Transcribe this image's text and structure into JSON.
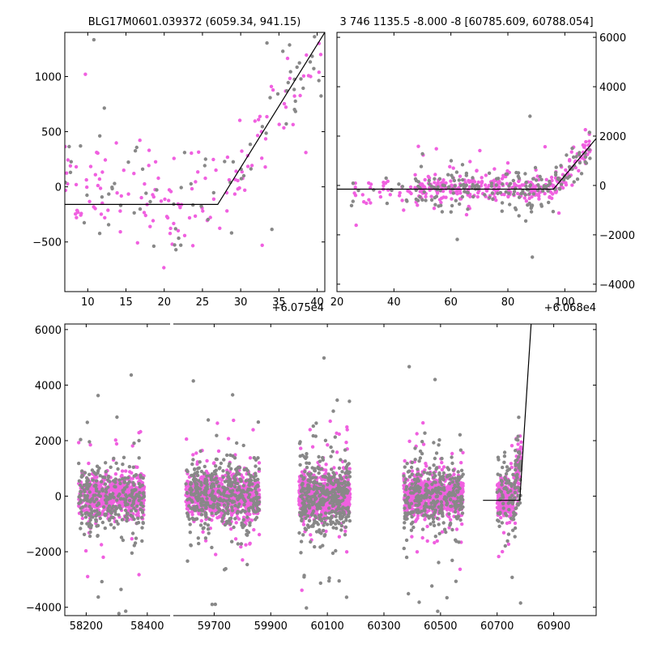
{
  "colors": {
    "magenta": "#f060e0",
    "gray": "#888888",
    "model_line": "#000000",
    "frame": "#000000",
    "background": "#ffffff"
  },
  "chart_data": [
    {
      "id": "zoom_left",
      "type": "scatter",
      "title": "BLG17M0601.039372 (6059.34, 941.15)",
      "x_offset_label": "+6.075e4",
      "xlim": [
        7,
        41
      ],
      "ylim": [
        -950,
        1400
      ],
      "x_ticks": [
        10,
        15,
        20,
        25,
        30,
        35,
        40
      ],
      "y_ticks": [
        -500,
        0,
        500,
        1000
      ],
      "y_axis_side": "left",
      "model_line": {
        "x": [
          7,
          27,
          41
        ],
        "y": [
          -160,
          -160,
          1400
        ]
      },
      "series": [
        {
          "name": "magenta points",
          "color": "magenta",
          "count": 150
        },
        {
          "name": "gray points",
          "color": "gray",
          "count": 80
        }
      ]
    },
    {
      "id": "zoom_right",
      "type": "scatter",
      "title": "3 746 1135.5 -8.000 -8 [60785.609, 60788.054]",
      "x_offset_label": "+6.068e4",
      "xlim": [
        20,
        111
      ],
      "ylim": [
        -4300,
        6200
      ],
      "x_ticks": [
        20,
        40,
        60,
        80,
        100
      ],
      "y_ticks": [
        -4000,
        -2000,
        0,
        2000,
        4000,
        6000
      ],
      "y_axis_side": "right",
      "model_line": {
        "x": [
          20,
          96,
          111
        ],
        "y": [
          -150,
          -150,
          1900
        ]
      },
      "series": [
        {
          "name": "magenta points",
          "color": "magenta",
          "count": 360
        },
        {
          "name": "gray points",
          "color": "gray",
          "count": 200
        }
      ]
    },
    {
      "id": "full_light_curve",
      "type": "scatter",
      "title": "",
      "ylim": [
        -4300,
        6200
      ],
      "y_ticks": [
        -4000,
        -2000,
        0,
        2000,
        4000,
        6000
      ],
      "y_axis_side": "left",
      "left_segment": {
        "xlim": [
          58130,
          58480
        ],
        "x_ticks": [
          58200,
          58400
        ]
      },
      "right_segment": {
        "xlim": [
          59550,
          61050
        ],
        "x_ticks": [
          59700,
          59900,
          60100,
          60300,
          60500,
          60700,
          60900
        ]
      },
      "season_ranges": [
        [
          58175,
          58390
        ],
        [
          59600,
          59860
        ],
        [
          60000,
          60180
        ],
        [
          60370,
          60580
        ],
        [
          60700,
          60785
        ]
      ],
      "model_line": {
        "x": [
          60650,
          60780,
          60820
        ],
        "y": [
          -150,
          -150,
          6200
        ]
      },
      "series": [
        {
          "name": "magenta points",
          "color": "magenta",
          "count": 3800
        },
        {
          "name": "gray points",
          "color": "gray",
          "count": 1600
        }
      ]
    }
  ]
}
